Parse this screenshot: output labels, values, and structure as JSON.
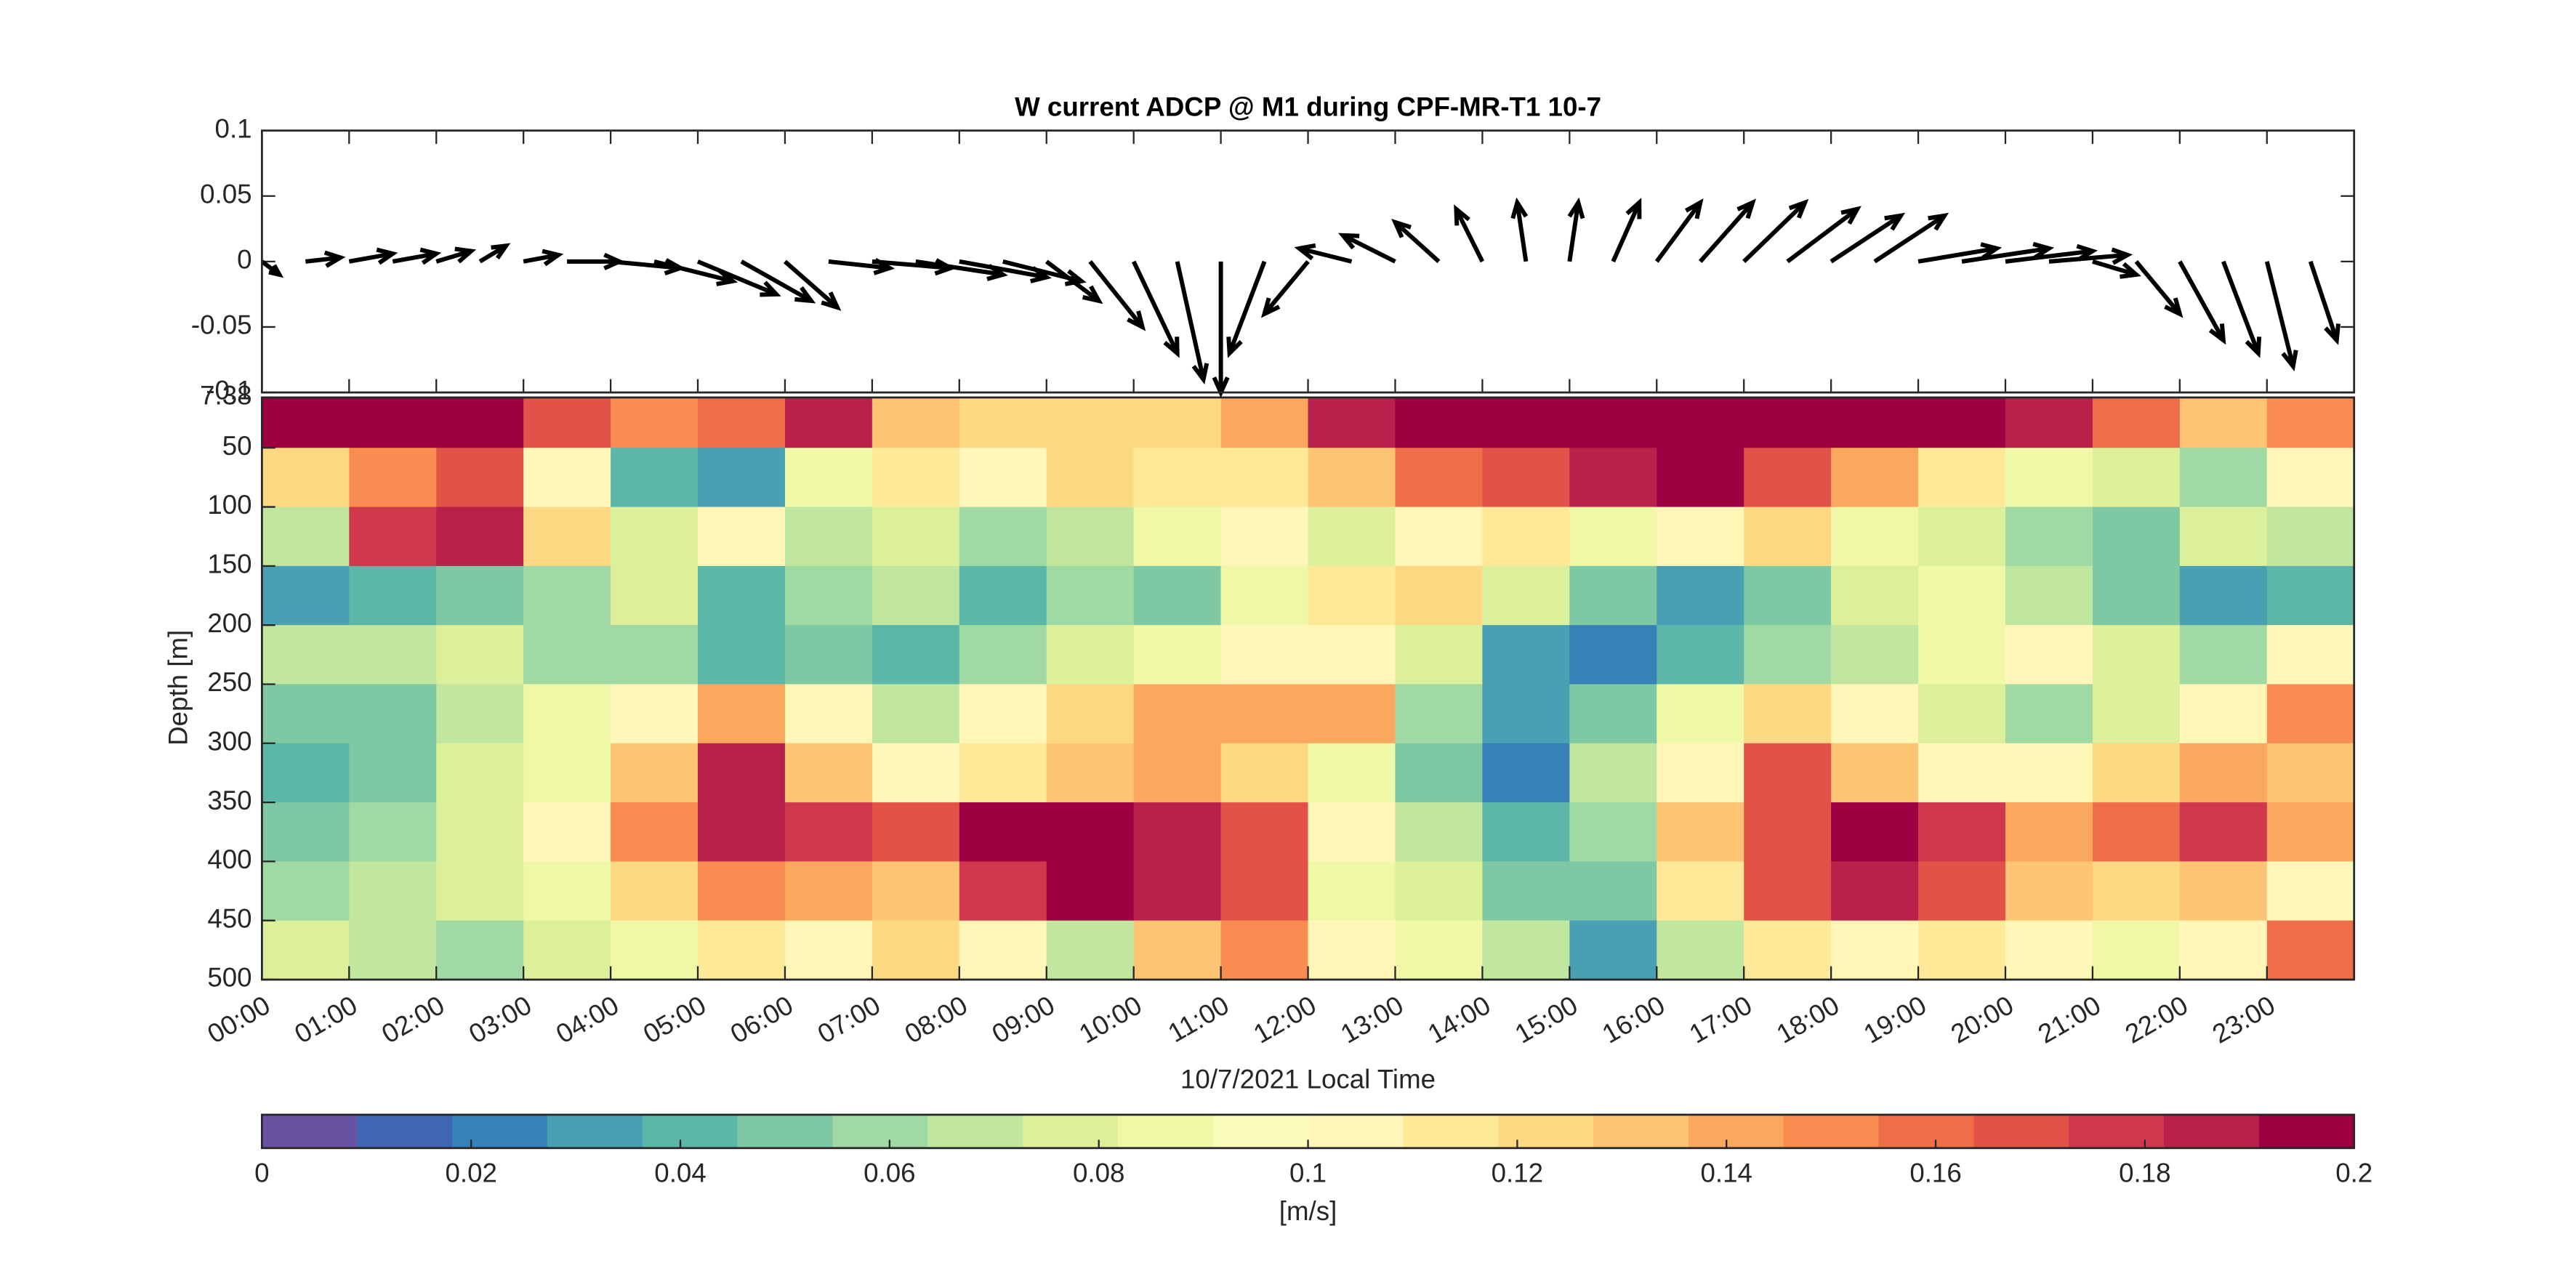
{
  "chart_data": [
    {
      "type": "quiver",
      "title": "W current ADCP @ M1 during CPF-MR-T1 10-7",
      "color": "#000000",
      "xlim": [
        0,
        24
      ],
      "ylim": [
        -0.1,
        0.1
      ],
      "yticks": [
        0.1,
        0.05,
        0,
        -0.05,
        -0.1
      ],
      "xticks": [
        0,
        1,
        2,
        3,
        4,
        5,
        6,
        7,
        8,
        9,
        10,
        11,
        12,
        13,
        14,
        15,
        16,
        17,
        18,
        19,
        20,
        21,
        22,
        23
      ],
      "x": [
        0,
        0.5,
        1,
        1.5,
        2,
        2.5,
        3,
        3.5,
        4,
        4.5,
        5,
        5.5,
        6,
        6.5,
        7,
        7.5,
        8,
        8.5,
        9,
        9.5,
        10,
        10.5,
        11,
        11.5,
        12,
        12.5,
        13,
        13.5,
        14,
        14.5,
        15,
        15.5,
        16,
        16.5,
        17,
        17.5,
        18,
        18.5,
        19,
        19.5,
        20,
        20.5,
        21,
        21.5,
        22,
        22.5,
        23,
        23.5
      ],
      "u": [
        0.2,
        0.4,
        0.5,
        0.5,
        0.4,
        0.3,
        0.4,
        0.6,
        0.8,
        0.9,
        0.9,
        0.8,
        0.6,
        0.7,
        0.9,
        1.0,
        1.0,
        0.9,
        0.6,
        0.6,
        0.5,
        0.3,
        0,
        -0.4,
        -0.5,
        -0.6,
        -0.6,
        -0.5,
        -0.3,
        -0.1,
        0.1,
        0.3,
        0.5,
        0.6,
        0.7,
        0.8,
        0.8,
        0.8,
        0.9,
        1.0,
        1.0,
        0.9,
        0.5,
        0.5,
        0.5,
        0.4,
        0.3,
        0.3
      ],
      "v": [
        -0.01,
        0.003,
        0.006,
        0.006,
        0.008,
        0.012,
        0.005,
        0,
        -0.005,
        -0.015,
        -0.025,
        -0.03,
        -0.035,
        -0.005,
        -0.005,
        -0.01,
        -0.012,
        -0.015,
        -0.03,
        -0.05,
        -0.07,
        -0.09,
        -0.1,
        -0.07,
        -0.04,
        0.01,
        0.02,
        0.03,
        0.04,
        0.045,
        0.045,
        0.045,
        0.045,
        0.045,
        0.045,
        0.04,
        0.035,
        0.035,
        0.01,
        0.01,
        0.008,
        0.005,
        -0.01,
        -0.04,
        -0.06,
        -0.07,
        -0.08,
        -0.06
      ]
    },
    {
      "type": "heatmap",
      "xlabel": "10/7/2021 Local Time",
      "ylabel": "Depth [m]",
      "xlim": [
        0,
        24
      ],
      "ylim": [
        7.38,
        500
      ],
      "y_reversed": true,
      "yticks": [
        7.38,
        50,
        100,
        150,
        200,
        250,
        300,
        350,
        400,
        450,
        500
      ],
      "xticks": [
        {
          "value": 0,
          "label": "00:00"
        },
        {
          "value": 1,
          "label": "01:00"
        },
        {
          "value": 2,
          "label": "02:00"
        },
        {
          "value": 3,
          "label": "03:00"
        },
        {
          "value": 4,
          "label": "04:00"
        },
        {
          "value": 5,
          "label": "05:00"
        },
        {
          "value": 6,
          "label": "06:00"
        },
        {
          "value": 7,
          "label": "07:00"
        },
        {
          "value": 8,
          "label": "08:00"
        },
        {
          "value": 9,
          "label": "09:00"
        },
        {
          "value": 10,
          "label": "10:00"
        },
        {
          "value": 11,
          "label": "11:00"
        },
        {
          "value": 12,
          "label": "12:00"
        },
        {
          "value": 13,
          "label": "13:00"
        },
        {
          "value": 14,
          "label": "14:00"
        },
        {
          "value": 15,
          "label": "15:00"
        },
        {
          "value": 16,
          "label": "16:00"
        },
        {
          "value": 17,
          "label": "17:00"
        },
        {
          "value": 18,
          "label": "18:00"
        },
        {
          "value": 19,
          "label": "19:00"
        },
        {
          "value": 20,
          "label": "20:00"
        },
        {
          "value": 21,
          "label": "21:00"
        },
        {
          "value": 22,
          "label": "22:00"
        },
        {
          "value": 23,
          "label": "23:00"
        }
      ],
      "x_edges": [
        0,
        1,
        2,
        3,
        4,
        5,
        6,
        7,
        8,
        9,
        10,
        11,
        12,
        13,
        14,
        15,
        16,
        17,
        18,
        19,
        20,
        21,
        22,
        23,
        24
      ],
      "y_edges": [
        7.38,
        50,
        100,
        150,
        200,
        250,
        300,
        350,
        400,
        450,
        500
      ],
      "z": [
        [
          0.2,
          0.2,
          0.2,
          0.17,
          0.15,
          0.16,
          0.19,
          0.13,
          0.12,
          0.12,
          0.12,
          0.14,
          0.19,
          0.2,
          0.2,
          0.2,
          0.2,
          0.2,
          0.2,
          0.2,
          0.19,
          0.16,
          0.13,
          0.15
        ],
        [
          0.12,
          0.15,
          0.17,
          0.1,
          0.04,
          0.03,
          0.09,
          0.11,
          0.1,
          0.12,
          0.11,
          0.11,
          0.13,
          0.16,
          0.17,
          0.19,
          0.2,
          0.17,
          0.14,
          0.11,
          0.09,
          0.08,
          0.06,
          0.1
        ],
        [
          0.07,
          0.18,
          0.19,
          0.12,
          0.08,
          0.1,
          0.07,
          0.08,
          0.06,
          0.07,
          0.09,
          0.1,
          0.08,
          0.1,
          0.11,
          0.09,
          0.1,
          0.12,
          0.09,
          0.08,
          0.06,
          0.05,
          0.08,
          0.07
        ],
        [
          0.03,
          0.04,
          0.05,
          0.06,
          0.08,
          0.04,
          0.06,
          0.07,
          0.04,
          0.06,
          0.05,
          0.09,
          0.11,
          0.12,
          0.08,
          0.05,
          0.03,
          0.05,
          0.08,
          0.09,
          0.07,
          0.05,
          0.03,
          0.04
        ],
        [
          0.07,
          0.07,
          0.08,
          0.06,
          0.06,
          0.04,
          0.05,
          0.04,
          0.06,
          0.08,
          0.09,
          0.1,
          0.1,
          0.08,
          0.03,
          0.02,
          0.04,
          0.06,
          0.07,
          0.09,
          0.1,
          0.08,
          0.06,
          0.1
        ],
        [
          0.05,
          0.05,
          0.07,
          0.09,
          0.1,
          0.14,
          0.1,
          0.07,
          0.1,
          0.12,
          0.14,
          0.14,
          0.14,
          0.06,
          0.03,
          0.05,
          0.09,
          0.12,
          0.1,
          0.08,
          0.06,
          0.08,
          0.1,
          0.15
        ],
        [
          0.04,
          0.05,
          0.08,
          0.09,
          0.13,
          0.19,
          0.13,
          0.1,
          0.11,
          0.13,
          0.14,
          0.12,
          0.09,
          0.05,
          0.02,
          0.07,
          0.1,
          0.17,
          0.13,
          0.1,
          0.1,
          0.12,
          0.14,
          0.13
        ],
        [
          0.05,
          0.06,
          0.08,
          0.1,
          0.15,
          0.19,
          0.18,
          0.17,
          0.2,
          0.2,
          0.19,
          0.17,
          0.1,
          0.07,
          0.04,
          0.06,
          0.13,
          0.17,
          0.2,
          0.18,
          0.14,
          0.16,
          0.18,
          0.14
        ],
        [
          0.06,
          0.07,
          0.08,
          0.09,
          0.12,
          0.15,
          0.14,
          0.13,
          0.18,
          0.2,
          0.19,
          0.17,
          0.09,
          0.08,
          0.05,
          0.05,
          0.11,
          0.17,
          0.19,
          0.17,
          0.13,
          0.12,
          0.13,
          0.1
        ],
        [
          0.08,
          0.07,
          0.06,
          0.08,
          0.09,
          0.11,
          0.1,
          0.12,
          0.1,
          0.07,
          0.13,
          0.15,
          0.1,
          0.09,
          0.07,
          0.03,
          0.07,
          0.11,
          0.1,
          0.11,
          0.1,
          0.09,
          0.1,
          0.16
        ]
      ],
      "colorbar": {
        "label": "[m/s]",
        "clim": [
          0,
          0.2
        ],
        "ticks": [
          0,
          0.02,
          0.04,
          0.06,
          0.08,
          0.1,
          0.12,
          0.14,
          0.16,
          0.18,
          0.2
        ],
        "colors": [
          "#6a52a3",
          "#4065b4",
          "#3581b8",
          "#48a0b2",
          "#5cb7a9",
          "#7ec9a4",
          "#a0d9a3",
          "#c0e6a0",
          "#dcf09b",
          "#eff8a6",
          "#fbfdbd",
          "#fff6b8",
          "#fee999",
          "#fdd883",
          "#fdc474",
          "#fba85f",
          "#f88c51",
          "#ef6e4a",
          "#e25249",
          "#cf384d",
          "#b8214b",
          "#9e0142"
        ]
      }
    }
  ]
}
